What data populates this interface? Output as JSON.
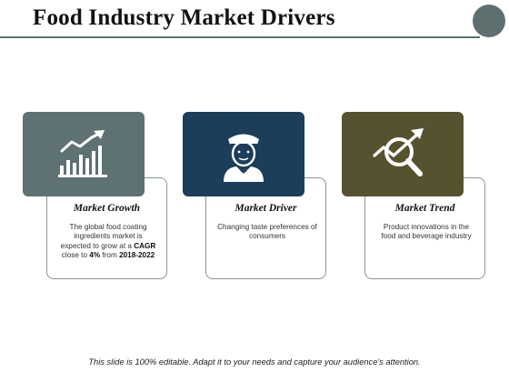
{
  "slide": {
    "title": "Food Industry Market Drivers",
    "footer": "This slide is 100% editable. Adapt it to your needs and capture your audience's attention."
  },
  "cards": [
    {
      "title": "Market Growth",
      "text_pre": "The global food coating ingredients market is expected to grow at a",
      "text_bold1": "CAGR",
      "text_mid": "close to",
      "text_bold2": "4%",
      "text_post": "from",
      "text_bold3": "2018-2022",
      "icon": "growth-chart-icon",
      "color": "#5e7173"
    },
    {
      "title": "Market Driver",
      "text": "Changing taste preferences of consumers",
      "icon": "driver-person-icon",
      "color": "#1c3e5a"
    },
    {
      "title": "Market Trend",
      "text": "Product innovations in the food and beverage industry",
      "icon": "magnifier-trend-icon",
      "color": "#56522f"
    }
  ],
  "colors": {
    "accent": "#5e6f70",
    "border": "#8a9596"
  }
}
